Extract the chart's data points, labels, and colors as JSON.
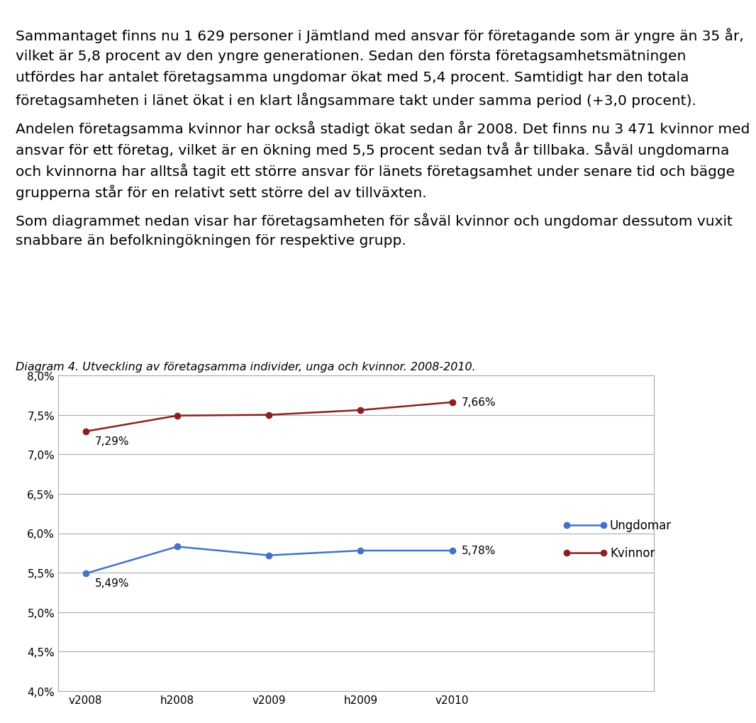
{
  "text_paragraphs": [
    "Sammantaget finns nu 1 629 personer i Jämtland med ansvar för företagande som är yngre än 35 år,",
    "vilket är 5,8 procent av den yngre generationen. Sedan den första företagsamhetsmätningen",
    "utfördes har antalet företagsamma ungdomar ökat med 5,4 procent. Samtidigt har den totala",
    "företagsamheten i länet ökat i en klart långsammare takt under samma period (+3,0 procent).",
    "",
    "Andelen företagsamma kvinnor har också stadigt ökat sedan år 2008. Det finns nu 3 471 kvinnor med",
    "ansvar för ett företag, vilket är en ökning med 5,5 procent sedan två år tillbaka. Såväl ungdomarna",
    "och kvinnorna har alltså tagit ett större ansvar för länets företagsamhet under senare tid och bägge",
    "grupperna står för en relativt sett större del av tillväxten.",
    "",
    "Som diagrammet nedan visar har företagsamheten för såväl kvinnor och ungdomar dessutom vuxit",
    "snabbare än befolkningökningen för respektive grupp."
  ],
  "diagram_caption": "Diagram 4. Utveckling av företagsamma individer, unga och kvinnor. 2008-2010.",
  "x_labels": [
    "v2008",
    "h2008",
    "v2009",
    "h2009",
    "v2010"
  ],
  "ungdomar_values": [
    5.49,
    5.83,
    5.72,
    5.78,
    5.78
  ],
  "kvinnor_values": [
    7.29,
    7.49,
    7.5,
    7.56,
    7.66
  ],
  "ungdomar_first_label": "5,49%",
  "ungdomar_last_label": "5,78%",
  "kvinnor_first_label": "7,29%",
  "kvinnor_last_label": "7,66%",
  "ungdomar_color": "#4472C4",
  "kvinnor_color": "#8B2020",
  "legend_ungdomar": "Ungdomar",
  "legend_kvinnor": "Kvinnor",
  "y_min": 4.0,
  "y_max": 8.0,
  "y_ticks": [
    4.0,
    4.5,
    5.0,
    5.5,
    6.0,
    6.5,
    7.0,
    7.5,
    8.0
  ],
  "background_color": "#ffffff",
  "chart_bg_color": "#ffffff",
  "grid_color": "#aaaaaa",
  "text_color": "#000000",
  "border_color": "#aaaaaa",
  "font_size_text": 14.5,
  "font_size_axis": 11,
  "font_size_caption": 11.5,
  "font_size_legend": 12,
  "font_size_label": 11
}
